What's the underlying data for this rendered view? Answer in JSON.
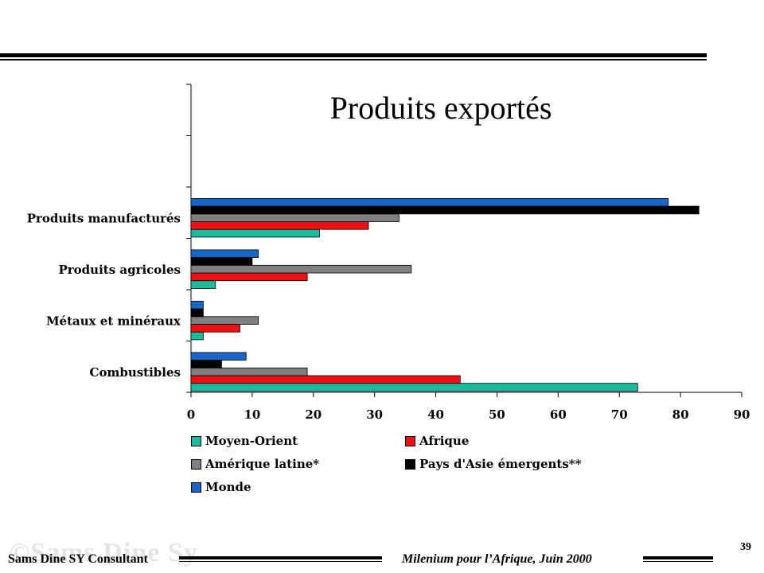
{
  "chart_data": {
    "type": "bar",
    "orientation": "horizontal",
    "title": "Produits exportés",
    "categories": [
      "Produits manufacturés",
      "Produits agricoles",
      "Métaux et minéraux",
      "Combustibles"
    ],
    "series": [
      {
        "name": "Moyen-Orient",
        "color": "#1abc9c",
        "values": [
          21,
          4,
          2,
          73
        ]
      },
      {
        "name": "Afrique",
        "color": "#ee1111",
        "values": [
          29,
          19,
          8,
          44
        ]
      },
      {
        "name": "Amérique latine*",
        "color": "#808080",
        "values": [
          34,
          36,
          11,
          19
        ]
      },
      {
        "name": "Pays d'Asie émergents**",
        "color": "#000000",
        "values": [
          83,
          10,
          2,
          5
        ]
      },
      {
        "name": "Monde",
        "color": "#1a66c8",
        "values": [
          78,
          11,
          2,
          9
        ]
      }
    ],
    "xlim": [
      0,
      90
    ],
    "xticks": [
      "0",
      "10",
      "20",
      "30",
      "40",
      "50",
      "60",
      "70",
      "80",
      "90"
    ],
    "grid": false,
    "legend_position": "bottom"
  },
  "footer": {
    "left": "Sams Dine SY Consultant",
    "right": "Milenium pour l’Afrique, Juin 2000",
    "page_number": "39",
    "watermark": "©Sams Dine Sy"
  }
}
